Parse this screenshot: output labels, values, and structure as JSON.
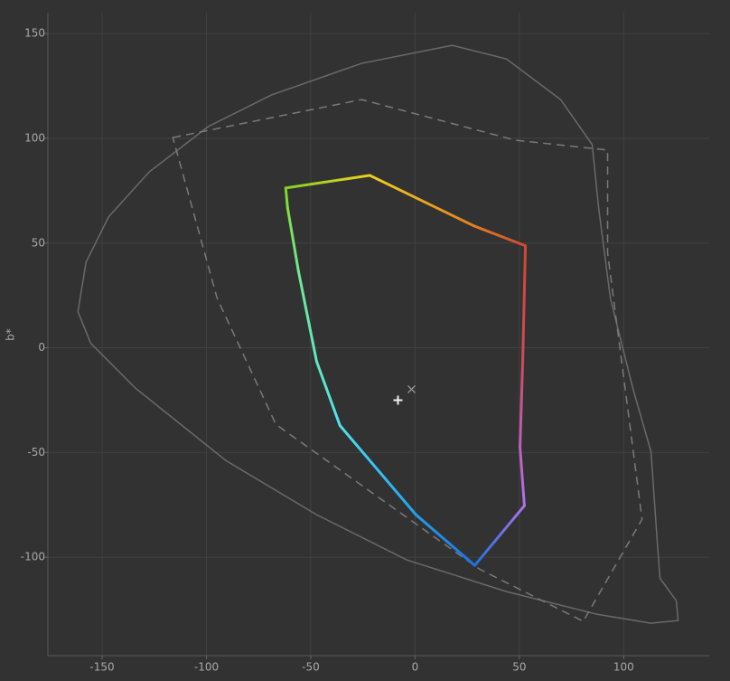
{
  "chart_data": {
    "type": "line",
    "ylabel": "b*",
    "xlim": [
      -176,
      141
    ],
    "ylim": [
      -147,
      160
    ],
    "xticks": [
      -150,
      -100,
      -50,
      0,
      50,
      100
    ],
    "yticks": [
      -100,
      -50,
      0,
      50,
      100,
      150
    ],
    "grid": true,
    "series": [
      {
        "color": "#6a6a6a",
        "line": "solid",
        "closed": true,
        "x": [
          -161.6,
          -157.7,
          -146.9,
          -127.4,
          -99.2,
          -68.9,
          -25.6,
          17.8,
          43.8,
          69.8,
          84.9,
          88,
          93.6,
          104.4,
          113.1,
          116.1,
          117.4,
          125.2,
          126.1,
          113.1,
          87.1,
          43.8,
          -3.9,
          -47.2,
          -90.6,
          -133.9,
          -155.5
        ],
        "y": [
          17.2,
          40.9,
          62.5,
          84,
          105.6,
          120.7,
          135.8,
          144.4,
          137.9,
          118.5,
          97,
          66.8,
          23.7,
          -19.4,
          -49.6,
          -92.7,
          -110,
          -120.7,
          -130.2,
          -131.5,
          -127.2,
          -116.4,
          -101.3,
          -79.7,
          -53.9,
          -19.4,
          2.2
        ]
      },
      {
        "color": "#7a7a7a",
        "line": "dashed",
        "closed": true,
        "x": [
          -116.1,
          -25.6,
          48.1,
          92.3,
          92.3,
          108.8,
          80.6,
          30.8,
          -66.7,
          -94.9
        ],
        "y": [
          100.4,
          118.5,
          99.1,
          94.4,
          45.3,
          -81.9,
          -130.6,
          -105.6,
          -36.6,
          23.7
        ]
      },
      {
        "line": "solid",
        "closed": true,
        "colors": [
          "#7ed321",
          "#f0d020",
          "#e08020",
          "#d04830",
          "#d04a60",
          "#c060c0",
          "#b070f0",
          "#2070e0",
          "#20a0f0",
          "#50e0f0",
          "#60e8c0",
          "#70e890",
          "#80e040"
        ],
        "x": [
          -62,
          -21.7,
          28.2,
          52.9,
          51.6,
          50.3,
          52.4,
          28.6,
          0.4,
          -36,
          -47.2,
          -55.9,
          -61.1
        ],
        "y": [
          76.3,
          82.3,
          58.2,
          48.7,
          -6.5,
          -47.4,
          -75.4,
          -103.9,
          -79.7,
          -37.1,
          -6.5,
          36.6,
          66.8
        ]
      },
      {
        "marker": "plus",
        "color": "#f0f0f0",
        "x": [
          -8.2
        ],
        "y": [
          -25
        ]
      },
      {
        "marker": "cross",
        "color": "#9a9a9a",
        "x": [
          -1.7
        ],
        "y": [
          -19.8
        ]
      }
    ]
  }
}
